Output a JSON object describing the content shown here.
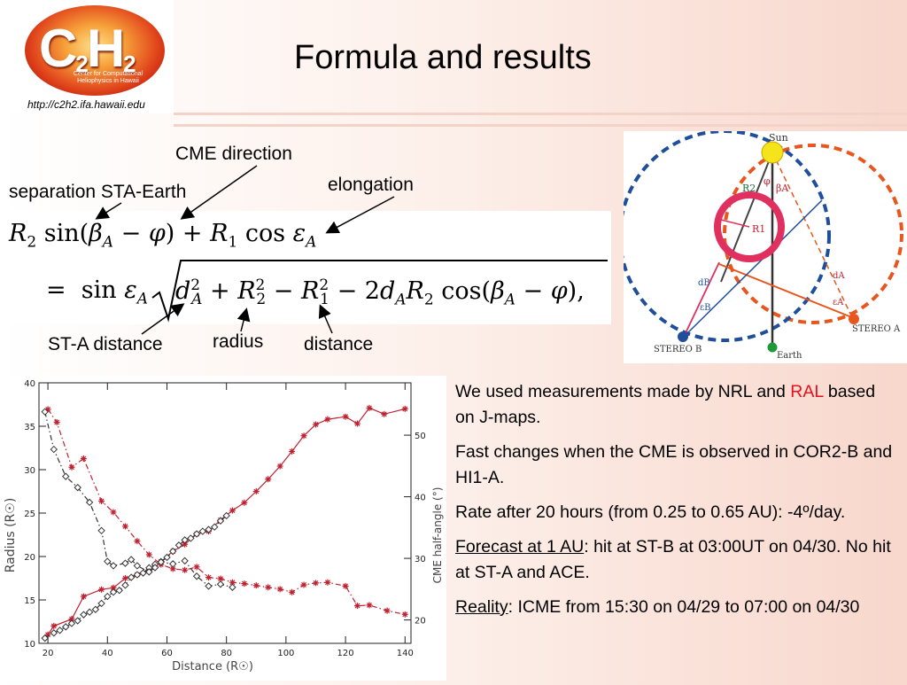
{
  "header": {
    "logo_alt": "C2H2",
    "logo_main": "C",
    "logo_sub1": "2",
    "logo_h": "H",
    "logo_sub2": "2",
    "logo_caption": "Center for Computational Heliophysics in Hawaii",
    "url": "http://c2h2.ifa.hawaii.edu",
    "title": "Formula and results"
  },
  "annotations": {
    "cme_direction": "CME direction",
    "separation": "separation STA-Earth",
    "elongation": "elongation",
    "sta_distance": "ST-A distance",
    "radius": "radius",
    "distance": "distance"
  },
  "diagram": {
    "sun": "Sun",
    "earth": "Earth",
    "stereo_a": "STEREO A",
    "stereo_b": "STEREO B",
    "r1": "R1",
    "r2": "R2",
    "phi": "φ",
    "beta_a": "βA",
    "d_a": "dA",
    "eps_a": "εA",
    "d_b": "dB",
    "eps_b": "εB",
    "colors": {
      "blue": "#1f4e9a",
      "orange": "#e8561e",
      "pink": "#e0305f",
      "sun": "#f5e31c",
      "earth": "#1e9a3a"
    }
  },
  "bullets": {
    "b1_part1": "We used measurements made by NRL and",
    "b1_red": "RAL",
    "b1_part2": " based on J-maps.",
    "b2": "Fast changes when the CME is observed in COR2-B and HI1-A.",
    "b3": "Rate after 20 hours (from 0.25 to 0.65 AU): -4º/day.",
    "b4_u": "Forecast at 1 AU",
    "b4_rest": ": hit at ST-B at 03:00UT on 04/30. No hit at ST-A and ACE.",
    "b5_u": "Reality",
    "b5_rest": ": ICME from 15:30 on 04/29 to 07:00 on 04/30"
  },
  "chart_data": {
    "type": "line",
    "xlabel": "Distance (R☉)",
    "ylabel": "Radius (R☉)",
    "y2label": "CME half-angle (°)",
    "xlim": [
      17,
      142
    ],
    "ylim": [
      10,
      40
    ],
    "y2lim": [
      16.2,
      58.5
    ],
    "x_ticks": [
      20,
      40,
      60,
      80,
      100,
      120,
      140
    ],
    "y_ticks": [
      10,
      15,
      20,
      25,
      30,
      35,
      40
    ],
    "y2_ticks": [
      20,
      30,
      40,
      50
    ],
    "colors": {
      "red": "#c0202f",
      "black": "#333333"
    },
    "series": [
      {
        "axis": "left",
        "style": "red-solid-star",
        "x": [
          20,
          22,
          28,
          32,
          38,
          42,
          46,
          50,
          54,
          58,
          62,
          66,
          70,
          74,
          78,
          82,
          86,
          90,
          94,
          98,
          102,
          106,
          110,
          114,
          120,
          124,
          128,
          133,
          140
        ],
        "y": [
          11,
          12,
          12.8,
          15.4,
          16.2,
          16.4,
          17.5,
          17.9,
          18.5,
          19.4,
          20.6,
          21.4,
          22.6,
          22.9,
          24.2,
          25.3,
          26.2,
          27.5,
          28.9,
          30.4,
          32.1,
          33.9,
          35.2,
          35.8,
          36.1,
          35.3,
          37.1,
          36.4,
          37
        ]
      },
      {
        "axis": "left",
        "style": "black-dashdot-diamond",
        "x": [
          19,
          22,
          24,
          26,
          28,
          30,
          32,
          34,
          36,
          38,
          40,
          42,
          44,
          46,
          48,
          50,
          52,
          54,
          56,
          58,
          60,
          62,
          64,
          66,
          68,
          70,
          72,
          74,
          76,
          78,
          80
        ],
        "y": [
          10.6,
          11.2,
          11.5,
          11.9,
          12.3,
          12.6,
          13.3,
          13.6,
          13.9,
          14.6,
          15.4,
          15.9,
          16.1,
          16.7,
          17.6,
          17.9,
          18.1,
          18.7,
          19.1,
          19.4,
          19.9,
          20.6,
          21.3,
          21.9,
          22.1,
          22.6,
          22.9,
          23.1,
          23.4,
          24.1,
          24.7
        ]
      },
      {
        "axis": "right",
        "style": "red-dashdot-star",
        "x": [
          20,
          23,
          28,
          32,
          38,
          42,
          46,
          50,
          54,
          58,
          62,
          66,
          70,
          74,
          78,
          82,
          86,
          90,
          94,
          98,
          102,
          106,
          110,
          114,
          120,
          124,
          128,
          134,
          140
        ],
        "y": [
          54.2,
          52.1,
          44.8,
          46.2,
          39.3,
          37.5,
          35.2,
          32.8,
          30.6,
          29,
          28.3,
          28.1,
          28.6,
          26.9,
          26.7,
          26.1,
          25.9,
          25.6,
          25.3,
          25,
          24.5,
          25.7,
          26,
          26.1,
          25.5,
          22.3,
          22.4,
          21.5,
          20.9
        ]
      },
      {
        "axis": "right",
        "style": "black-dashdot-diamond",
        "x": [
          19,
          22,
          26,
          30,
          34,
          38,
          40,
          42,
          46,
          48,
          50,
          54,
          56,
          58,
          62,
          66,
          70,
          74,
          78,
          82
        ],
        "y": [
          53.8,
          47.7,
          43.3,
          41.5,
          39.1,
          34.5,
          29.5,
          28.8,
          29.2,
          29.8,
          28.8,
          27.8,
          28.5,
          29.4,
          29.1,
          29.6,
          27.1,
          25.5,
          25.8,
          25.3
        ]
      }
    ]
  }
}
